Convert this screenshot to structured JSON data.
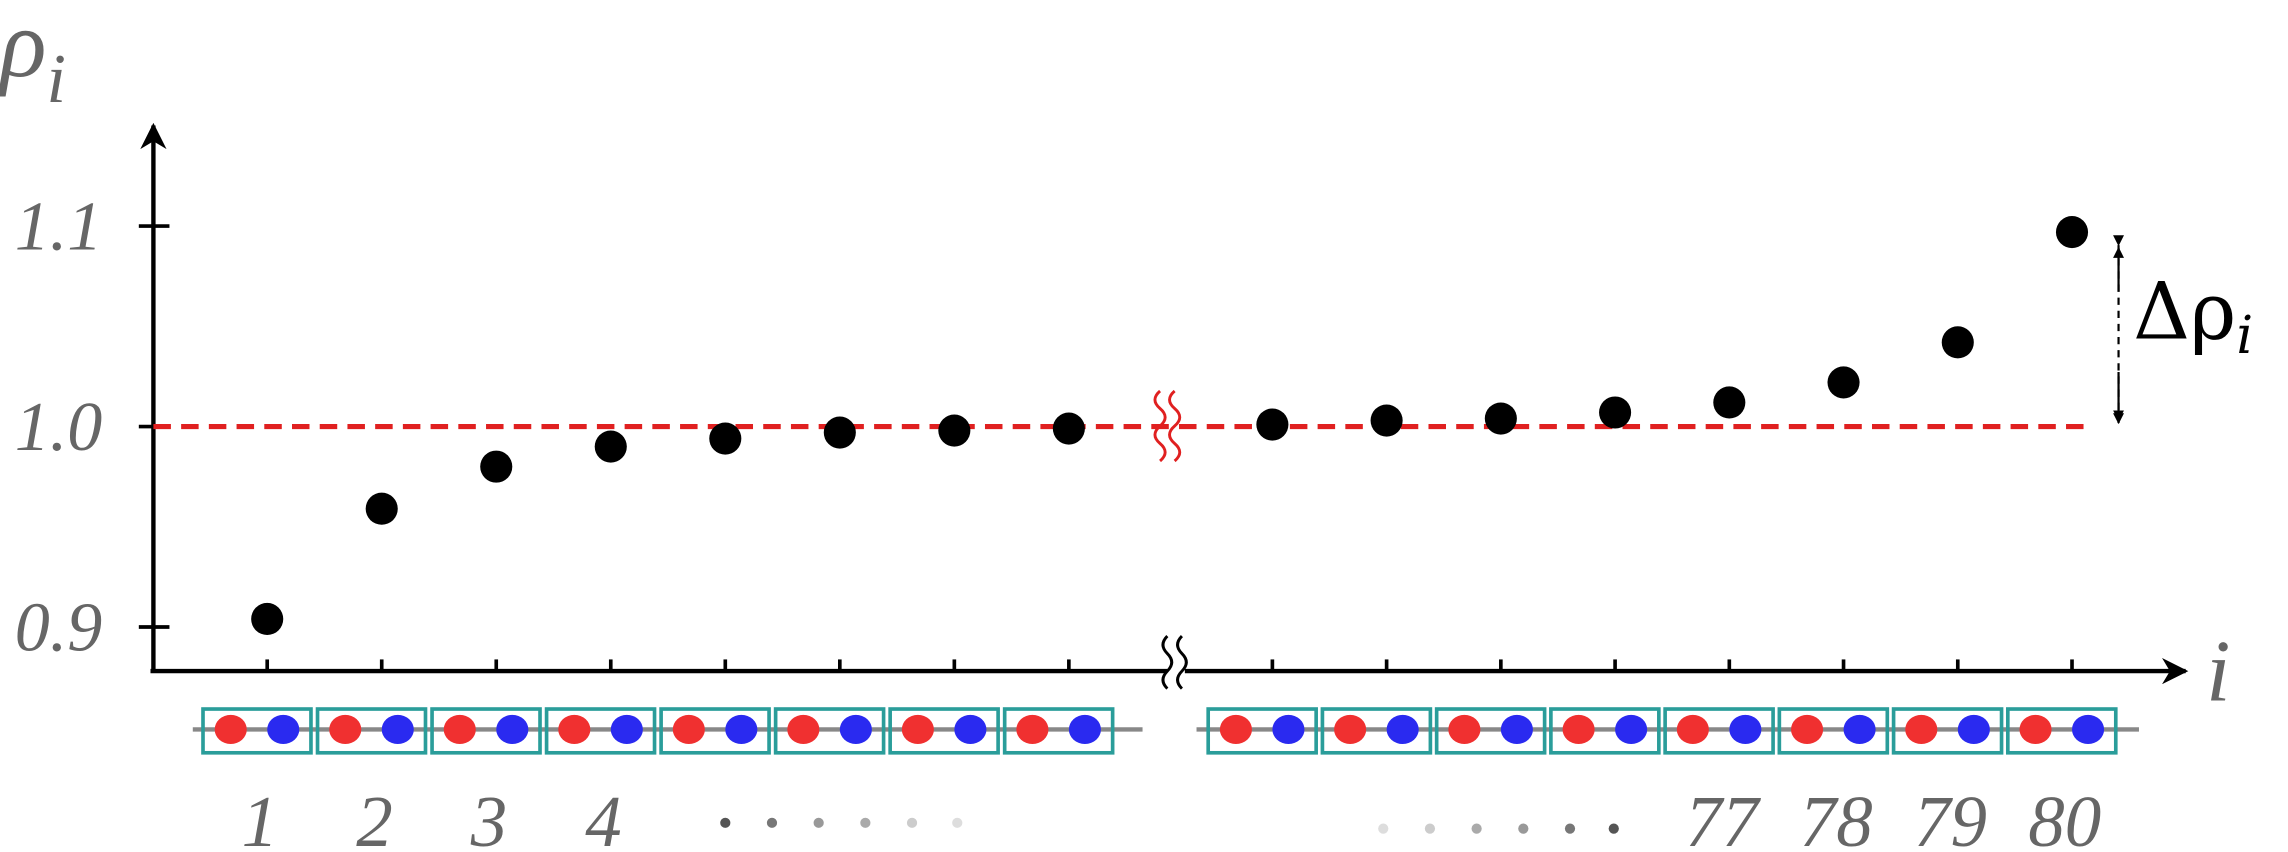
{
  "chart_data": {
    "type": "scatter",
    "y_label": {
      "symbol": "ρ",
      "subscript": "i"
    },
    "x_label": "i",
    "annotation": {
      "symbol": "Δρ",
      "subscript": "i"
    },
    "categories": [
      "1",
      "2",
      "3",
      "4",
      null,
      null,
      null,
      null,
      null,
      null,
      null,
      null,
      "77",
      "78",
      "79",
      "80"
    ],
    "values": [
      0.904,
      0.959,
      0.98,
      0.99,
      0.994,
      0.997,
      0.998,
      0.999,
      1.001,
      1.003,
      1.004,
      1.007,
      1.012,
      1.022,
      1.042,
      1.097
    ],
    "color": "#000000",
    "reference_line": {
      "value": 1,
      "color": "#e02020"
    },
    "ylim": [
      0.878,
      1.14
    ],
    "yticks": [
      0.9,
      {
        "value": 1,
        "label": "1.0"
      },
      1.1
    ]
  }
}
